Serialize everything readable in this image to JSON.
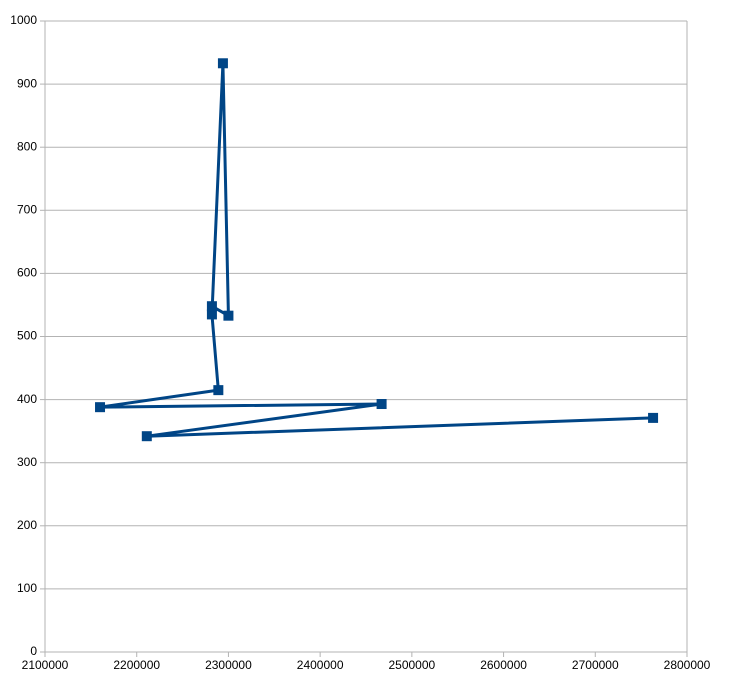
{
  "chart_data": {
    "type": "line",
    "x": [
      2763000,
      2211000,
      2467000,
      2160000,
      2289000,
      2282000,
      2294000,
      2300000,
      2282000
    ],
    "series": [
      {
        "color": "#004586",
        "values": [
          371,
          342,
          393,
          388,
          415,
          535,
          933,
          533,
          548
        ]
      }
    ],
    "xlim": [
      2100000,
      2800000
    ],
    "xticks": [
      2100000,
      2200000,
      2300000,
      2400000,
      2500000,
      2600000,
      2700000,
      2800000
    ],
    "ylim": [
      0,
      1000
    ],
    "yticks": [
      0,
      100,
      200,
      300,
      400,
      500,
      600,
      700,
      800,
      900,
      1000
    ],
    "grid": true
  }
}
